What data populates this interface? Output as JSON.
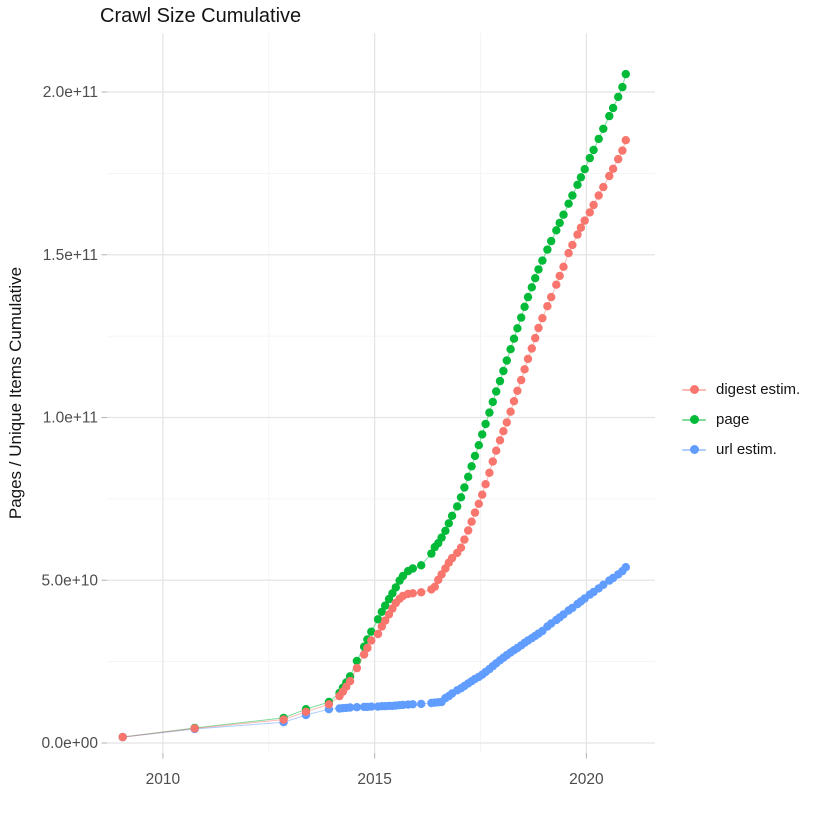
{
  "chart_data": {
    "type": "line",
    "title": "Crawl Size Cumulative",
    "xlabel": "",
    "ylabel": "Pages / Unique Items Cumulative",
    "value_unit": "billions (1e9) of pages / unique items",
    "grid": "on",
    "legend_position": "right",
    "x_ticks": [
      {
        "v": 2010,
        "label": "2010"
      },
      {
        "v": 2015,
        "label": "2015"
      },
      {
        "v": 2020,
        "label": "2020"
      }
    ],
    "x_minor_ticks": [
      2012.5,
      2017.5
    ],
    "y_ticks": [
      {
        "v": 0,
        "label": "0.0e+00"
      },
      {
        "v": 50,
        "label": "5.0e+10"
      },
      {
        "v": 100,
        "label": "1.0e+11"
      },
      {
        "v": 150,
        "label": "1.5e+11"
      },
      {
        "v": 200,
        "label": "2.0e+11"
      }
    ],
    "y_minor_ticks": [
      25,
      75,
      125,
      175
    ],
    "layout": {
      "panel": {
        "l": 107,
        "t": 33,
        "r": 655,
        "b": 753
      },
      "x_range": [
        2008.68,
        2021.62
      ],
      "y_range": [
        -3.07,
        218.13
      ],
      "point_radius": 4.2,
      "line_width": 1,
      "line_opacity": 0.5,
      "major_grid_color": "#e4e4e4",
      "minor_grid_color": "#f2f2f2",
      "tick_color": "#b8b8b8",
      "tick_label_color": "#4d4d4d"
    },
    "draw_order": [
      1,
      2,
      0
    ],
    "series": [
      {
        "name": "digest estim.",
        "color": "#F8766D",
        "points": [
          [
            2009.05,
            1.8
          ],
          [
            2010.75,
            4.5
          ],
          [
            2012.85,
            7.2
          ],
          [
            2013.38,
            9.6
          ],
          [
            2013.92,
            11.9
          ],
          [
            2014.17,
            14.4
          ],
          [
            2014.25,
            15.8
          ],
          [
            2014.33,
            17.3
          ],
          [
            2014.42,
            19.0
          ],
          [
            2014.58,
            23.0
          ],
          [
            2014.75,
            27.2
          ],
          [
            2014.83,
            29.2
          ],
          [
            2014.92,
            31.5
          ],
          [
            2015.08,
            33.5
          ],
          [
            2015.17,
            35.8
          ],
          [
            2015.25,
            37.6
          ],
          [
            2015.34,
            39.5
          ],
          [
            2015.42,
            41.3
          ],
          [
            2015.5,
            43.0
          ],
          [
            2015.59,
            44.3
          ],
          [
            2015.67,
            45.2
          ],
          [
            2015.79,
            45.8
          ],
          [
            2015.9,
            46.0
          ],
          [
            2016.1,
            46.3
          ],
          [
            2016.34,
            47.2
          ],
          [
            2016.42,
            48.0
          ],
          [
            2016.5,
            50.1
          ],
          [
            2016.58,
            51.8
          ],
          [
            2016.67,
            53.6
          ],
          [
            2016.75,
            55.4
          ],
          [
            2016.83,
            56.8
          ],
          [
            2016.95,
            58.4
          ],
          [
            2017.04,
            60.0
          ],
          [
            2017.12,
            62.5
          ],
          [
            2017.21,
            65.3
          ],
          [
            2017.29,
            68.0
          ],
          [
            2017.37,
            70.8
          ],
          [
            2017.46,
            73.5
          ],
          [
            2017.54,
            76.3
          ],
          [
            2017.62,
            79.5
          ],
          [
            2017.71,
            83.0
          ],
          [
            2017.79,
            86.5
          ],
          [
            2017.87,
            89.8
          ],
          [
            2017.96,
            93.0
          ],
          [
            2018.04,
            95.8
          ],
          [
            2018.12,
            98.5
          ],
          [
            2018.21,
            101.8
          ],
          [
            2018.29,
            105.0
          ],
          [
            2018.37,
            108.2
          ],
          [
            2018.46,
            111.5
          ],
          [
            2018.54,
            114.8
          ],
          [
            2018.62,
            118.0
          ],
          [
            2018.71,
            121.2
          ],
          [
            2018.79,
            124.4
          ],
          [
            2018.87,
            127.5
          ],
          [
            2018.96,
            130.5
          ],
          [
            2019.08,
            134.2
          ],
          [
            2019.17,
            137.0
          ],
          [
            2019.29,
            140.8
          ],
          [
            2019.37,
            143.5
          ],
          [
            2019.46,
            146.3
          ],
          [
            2019.58,
            150.5
          ],
          [
            2019.67,
            153.0
          ],
          [
            2019.79,
            156.2
          ],
          [
            2019.87,
            158.3
          ],
          [
            2019.96,
            160.5
          ],
          [
            2020.08,
            163.0
          ],
          [
            2020.17,
            165.3
          ],
          [
            2020.29,
            168.2
          ],
          [
            2020.4,
            170.8
          ],
          [
            2020.54,
            174.2
          ],
          [
            2020.63,
            176.4
          ],
          [
            2020.75,
            179.4
          ],
          [
            2020.85,
            182.0
          ],
          [
            2020.93,
            185.2
          ]
        ]
      },
      {
        "name": "page",
        "color": "#00BA38",
        "points": [
          [
            2009.05,
            1.8
          ],
          [
            2010.75,
            4.6
          ],
          [
            2012.85,
            7.7
          ],
          [
            2013.38,
            10.4
          ],
          [
            2013.92,
            12.6
          ],
          [
            2014.17,
            15.4
          ],
          [
            2014.25,
            17.0
          ],
          [
            2014.33,
            18.6
          ],
          [
            2014.42,
            20.5
          ],
          [
            2014.58,
            25.2
          ],
          [
            2014.75,
            29.6
          ],
          [
            2014.83,
            31.8
          ],
          [
            2014.92,
            34.2
          ],
          [
            2015.08,
            38.0
          ],
          [
            2015.17,
            40.3
          ],
          [
            2015.25,
            42.2
          ],
          [
            2015.34,
            44.2
          ],
          [
            2015.42,
            46.0
          ],
          [
            2015.5,
            47.8
          ],
          [
            2015.59,
            49.9
          ],
          [
            2015.67,
            51.3
          ],
          [
            2015.79,
            52.8
          ],
          [
            2015.9,
            53.6
          ],
          [
            2016.1,
            54.6
          ],
          [
            2016.34,
            58.2
          ],
          [
            2016.42,
            60.2
          ],
          [
            2016.5,
            61.4
          ],
          [
            2016.58,
            63.1
          ],
          [
            2016.67,
            65.2
          ],
          [
            2016.75,
            67.5
          ],
          [
            2016.83,
            69.8
          ],
          [
            2016.95,
            72.7
          ],
          [
            2017.04,
            75.5
          ],
          [
            2017.12,
            78.5
          ],
          [
            2017.21,
            81.8
          ],
          [
            2017.29,
            85.0
          ],
          [
            2017.37,
            88.2
          ],
          [
            2017.46,
            91.5
          ],
          [
            2017.54,
            94.8
          ],
          [
            2017.62,
            98.0
          ],
          [
            2017.71,
            101.5
          ],
          [
            2017.79,
            104.8
          ],
          [
            2017.87,
            108.0
          ],
          [
            2017.96,
            111.2
          ],
          [
            2018.04,
            114.3
          ],
          [
            2018.12,
            117.5
          ],
          [
            2018.21,
            121.0
          ],
          [
            2018.29,
            124.2
          ],
          [
            2018.37,
            127.4
          ],
          [
            2018.46,
            130.7
          ],
          [
            2018.54,
            134.0
          ],
          [
            2018.62,
            137.0
          ],
          [
            2018.71,
            140.0
          ],
          [
            2018.79,
            142.8
          ],
          [
            2018.87,
            145.5
          ],
          [
            2018.96,
            148.2
          ],
          [
            2019.08,
            151.6
          ],
          [
            2019.17,
            154.2
          ],
          [
            2019.29,
            157.5
          ],
          [
            2019.37,
            159.8
          ],
          [
            2019.46,
            162.3
          ],
          [
            2019.58,
            165.7
          ],
          [
            2019.67,
            168.2
          ],
          [
            2019.79,
            171.5
          ],
          [
            2019.87,
            173.8
          ],
          [
            2019.96,
            176.3
          ],
          [
            2020.08,
            179.7
          ],
          [
            2020.17,
            182.2
          ],
          [
            2020.29,
            185.6
          ],
          [
            2020.4,
            188.7
          ],
          [
            2020.54,
            192.6
          ],
          [
            2020.63,
            195.1
          ],
          [
            2020.75,
            198.5
          ],
          [
            2020.85,
            201.5
          ],
          [
            2020.93,
            205.5
          ]
        ]
      },
      {
        "name": "url estim.",
        "color": "#619CFF",
        "points": [
          [
            2009.05,
            1.8
          ],
          [
            2010.75,
            4.3
          ],
          [
            2012.85,
            6.4
          ],
          [
            2013.38,
            8.6
          ],
          [
            2013.92,
            10.4
          ],
          [
            2014.17,
            10.6
          ],
          [
            2014.25,
            10.7
          ],
          [
            2014.33,
            10.8
          ],
          [
            2014.42,
            10.9
          ],
          [
            2014.58,
            11.0
          ],
          [
            2014.75,
            11.1
          ],
          [
            2014.83,
            11.1
          ],
          [
            2014.92,
            11.2
          ],
          [
            2015.08,
            11.2
          ],
          [
            2015.17,
            11.3
          ],
          [
            2015.25,
            11.3
          ],
          [
            2015.34,
            11.4
          ],
          [
            2015.42,
            11.4
          ],
          [
            2015.5,
            11.5
          ],
          [
            2015.59,
            11.6
          ],
          [
            2015.67,
            11.7
          ],
          [
            2015.79,
            11.8
          ],
          [
            2015.9,
            11.9
          ],
          [
            2016.1,
            12.0
          ],
          [
            2016.34,
            12.3
          ],
          [
            2016.42,
            12.4
          ],
          [
            2016.5,
            12.5
          ],
          [
            2016.58,
            12.6
          ],
          [
            2016.67,
            13.8
          ],
          [
            2016.75,
            14.4
          ],
          [
            2016.83,
            15.2
          ],
          [
            2016.95,
            16.2
          ],
          [
            2017.04,
            16.8
          ],
          [
            2017.12,
            17.5
          ],
          [
            2017.21,
            18.3
          ],
          [
            2017.29,
            19.0
          ],
          [
            2017.37,
            19.7
          ],
          [
            2017.46,
            20.3
          ],
          [
            2017.54,
            21.0
          ],
          [
            2017.62,
            21.8
          ],
          [
            2017.71,
            22.7
          ],
          [
            2017.79,
            23.6
          ],
          [
            2017.87,
            24.5
          ],
          [
            2017.96,
            25.4
          ],
          [
            2018.04,
            26.2
          ],
          [
            2018.12,
            27.0
          ],
          [
            2018.21,
            27.8
          ],
          [
            2018.29,
            28.5
          ],
          [
            2018.37,
            29.2
          ],
          [
            2018.46,
            30.0
          ],
          [
            2018.54,
            30.8
          ],
          [
            2018.62,
            31.5
          ],
          [
            2018.71,
            32.2
          ],
          [
            2018.79,
            32.9
          ],
          [
            2018.87,
            33.6
          ],
          [
            2018.96,
            34.4
          ],
          [
            2019.08,
            35.8
          ],
          [
            2019.17,
            36.7
          ],
          [
            2019.29,
            37.8
          ],
          [
            2019.37,
            38.6
          ],
          [
            2019.46,
            39.5
          ],
          [
            2019.58,
            40.7
          ],
          [
            2019.67,
            41.5
          ],
          [
            2019.79,
            42.7
          ],
          [
            2019.87,
            43.5
          ],
          [
            2019.96,
            44.4
          ],
          [
            2020.08,
            45.6
          ],
          [
            2020.17,
            46.4
          ],
          [
            2020.29,
            47.5
          ],
          [
            2020.4,
            48.6
          ],
          [
            2020.54,
            49.9
          ],
          [
            2020.63,
            50.7
          ],
          [
            2020.75,
            51.8
          ],
          [
            2020.85,
            52.8
          ],
          [
            2020.93,
            54.0
          ]
        ]
      }
    ]
  }
}
